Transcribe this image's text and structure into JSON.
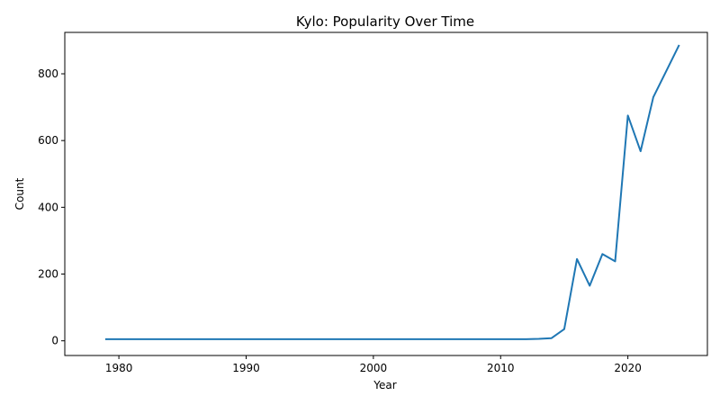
{
  "chart_data": {
    "type": "line",
    "title": "Kylo: Popularity Over Time",
    "xlabel": "Year",
    "ylabel": "Count",
    "xlim": [
      1975.75,
      2026.25
    ],
    "ylim": [
      -44,
      924
    ],
    "xticks": [
      1980,
      1990,
      2000,
      2010,
      2020
    ],
    "yticks": [
      0,
      200,
      400,
      600,
      800
    ],
    "grid": false,
    "line_color": "#1f77b4",
    "series": [
      {
        "name": "",
        "x": [
          1979,
          1980,
          1981,
          1982,
          1983,
          1984,
          1985,
          1986,
          1987,
          1988,
          1989,
          1990,
          1991,
          1992,
          1993,
          1994,
          1995,
          1996,
          1997,
          1998,
          1999,
          2000,
          2001,
          2002,
          2003,
          2004,
          2005,
          2006,
          2007,
          2008,
          2009,
          2010,
          2011,
          2012,
          2013,
          2014,
          2015,
          2016,
          2017,
          2018,
          2019,
          2020,
          2021,
          2022,
          2023,
          2024
        ],
        "y": [
          5,
          5,
          5,
          5,
          5,
          5,
          5,
          5,
          5,
          5,
          5,
          5,
          5,
          5,
          5,
          5,
          5,
          5,
          5,
          5,
          5,
          5,
          5,
          5,
          5,
          5,
          5,
          5,
          5,
          5,
          5,
          5,
          5,
          5,
          6,
          8,
          35,
          245,
          165,
          260,
          238,
          675,
          568,
          730,
          807,
          884
        ]
      }
    ]
  }
}
